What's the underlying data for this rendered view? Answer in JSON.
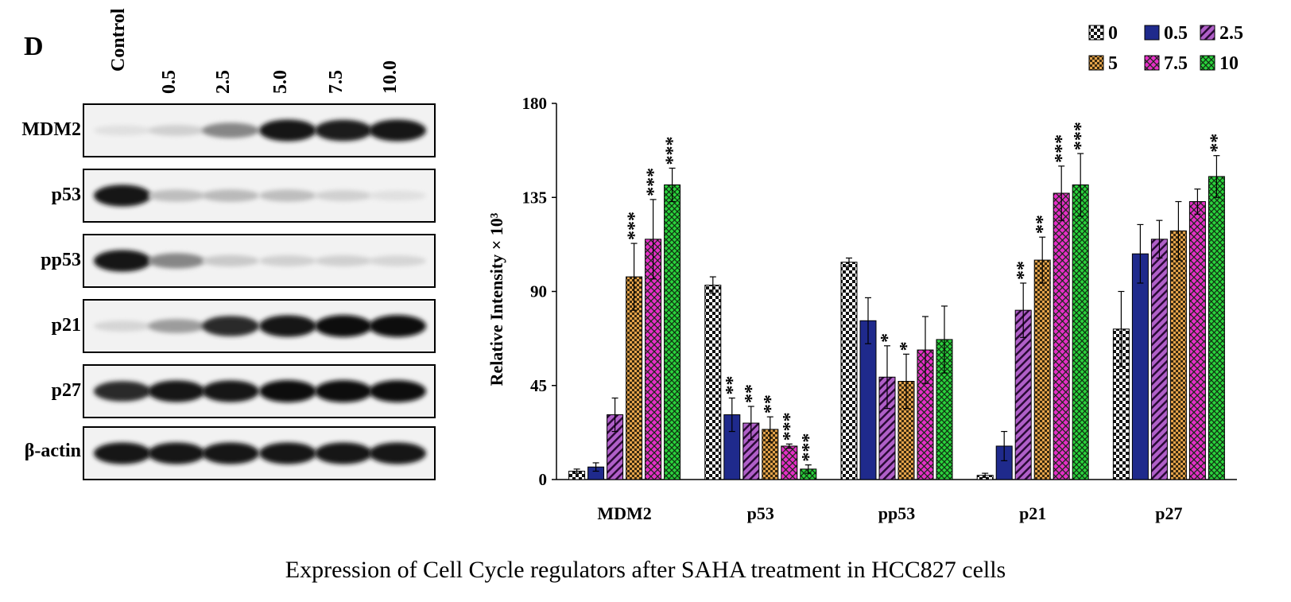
{
  "figure": {
    "panel_letter": "D",
    "caption": "Expression of Cell Cycle regulators after SAHA treatment in HCC827 cells"
  },
  "blot": {
    "lanes": [
      "Control",
      "0.5",
      "2.5",
      "5.0",
      "7.5",
      "10.0"
    ],
    "rows": [
      {
        "label": "MDM2",
        "intensities": [
          0.05,
          0.12,
          0.45,
          0.95,
          0.92,
          0.95
        ]
      },
      {
        "label": "p53",
        "intensities": [
          0.95,
          0.2,
          0.22,
          0.2,
          0.12,
          0.05
        ]
      },
      {
        "label": "pp53",
        "intensities": [
          0.95,
          0.45,
          0.15,
          0.12,
          0.12,
          0.1
        ]
      },
      {
        "label": "p21",
        "intensities": [
          0.1,
          0.35,
          0.85,
          0.95,
          0.98,
          0.98
        ]
      },
      {
        "label": "p27",
        "intensities": [
          0.85,
          0.95,
          0.95,
          1.0,
          1.0,
          0.98
        ]
      },
      {
        "label": "β-actin",
        "intensities": [
          0.95,
          0.95,
          0.95,
          0.95,
          0.95,
          0.95
        ]
      }
    ]
  },
  "chart_data": {
    "type": "bar",
    "title": "",
    "xlabel": "",
    "ylabel": "Relative Intensity × 10³",
    "ylim": [
      0,
      180
    ],
    "yticks": [
      0,
      45,
      90,
      135,
      180
    ],
    "grid": false,
    "legend_position": "top-right",
    "categories": [
      "MDM2",
      "p53",
      "pp53",
      "p21",
      "p27"
    ],
    "series": [
      {
        "name": "0",
        "pattern": "checker-bw",
        "color": "#000000",
        "values": [
          4,
          93,
          104,
          2,
          72
        ],
        "errors": [
          1,
          4,
          2,
          1,
          18
        ],
        "sig": [
          "",
          "",
          "",
          "",
          ""
        ]
      },
      {
        "name": "0.5",
        "pattern": "solid",
        "color": "#1f2a8c",
        "values": [
          6,
          31,
          76,
          16,
          108
        ],
        "errors": [
          2,
          8,
          11,
          7,
          14
        ],
        "sig": [
          "",
          "**",
          "",
          "",
          ""
        ]
      },
      {
        "name": "2.5",
        "pattern": "diagonal",
        "color": "#b05fc8",
        "values": [
          31,
          27,
          49,
          81,
          115
        ],
        "errors": [
          8,
          8,
          15,
          13,
          9
        ],
        "sig": [
          "",
          "**",
          "*",
          "**",
          ""
        ]
      },
      {
        "name": "5",
        "pattern": "checker",
        "color": "#e3a24a",
        "values": [
          97,
          24,
          47,
          105,
          119
        ],
        "errors": [
          16,
          6,
          13,
          11,
          14
        ],
        "sig": [
          "***",
          "**",
          "*",
          "**",
          ""
        ]
      },
      {
        "name": "7.5",
        "pattern": "crosshatch",
        "color": "#e62ec8",
        "values": [
          115,
          16,
          62,
          137,
          133
        ],
        "errors": [
          19,
          1,
          16,
          13,
          6
        ],
        "sig": [
          "***",
          "***",
          "",
          "***",
          ""
        ]
      },
      {
        "name": "10",
        "pattern": "crosshatch-fine",
        "color": "#2ad43c",
        "values": [
          141,
          5,
          67,
          141,
          145
        ],
        "errors": [
          8,
          2,
          16,
          15,
          10
        ],
        "sig": [
          "***",
          "***",
          "",
          "***",
          "**"
        ]
      }
    ]
  }
}
